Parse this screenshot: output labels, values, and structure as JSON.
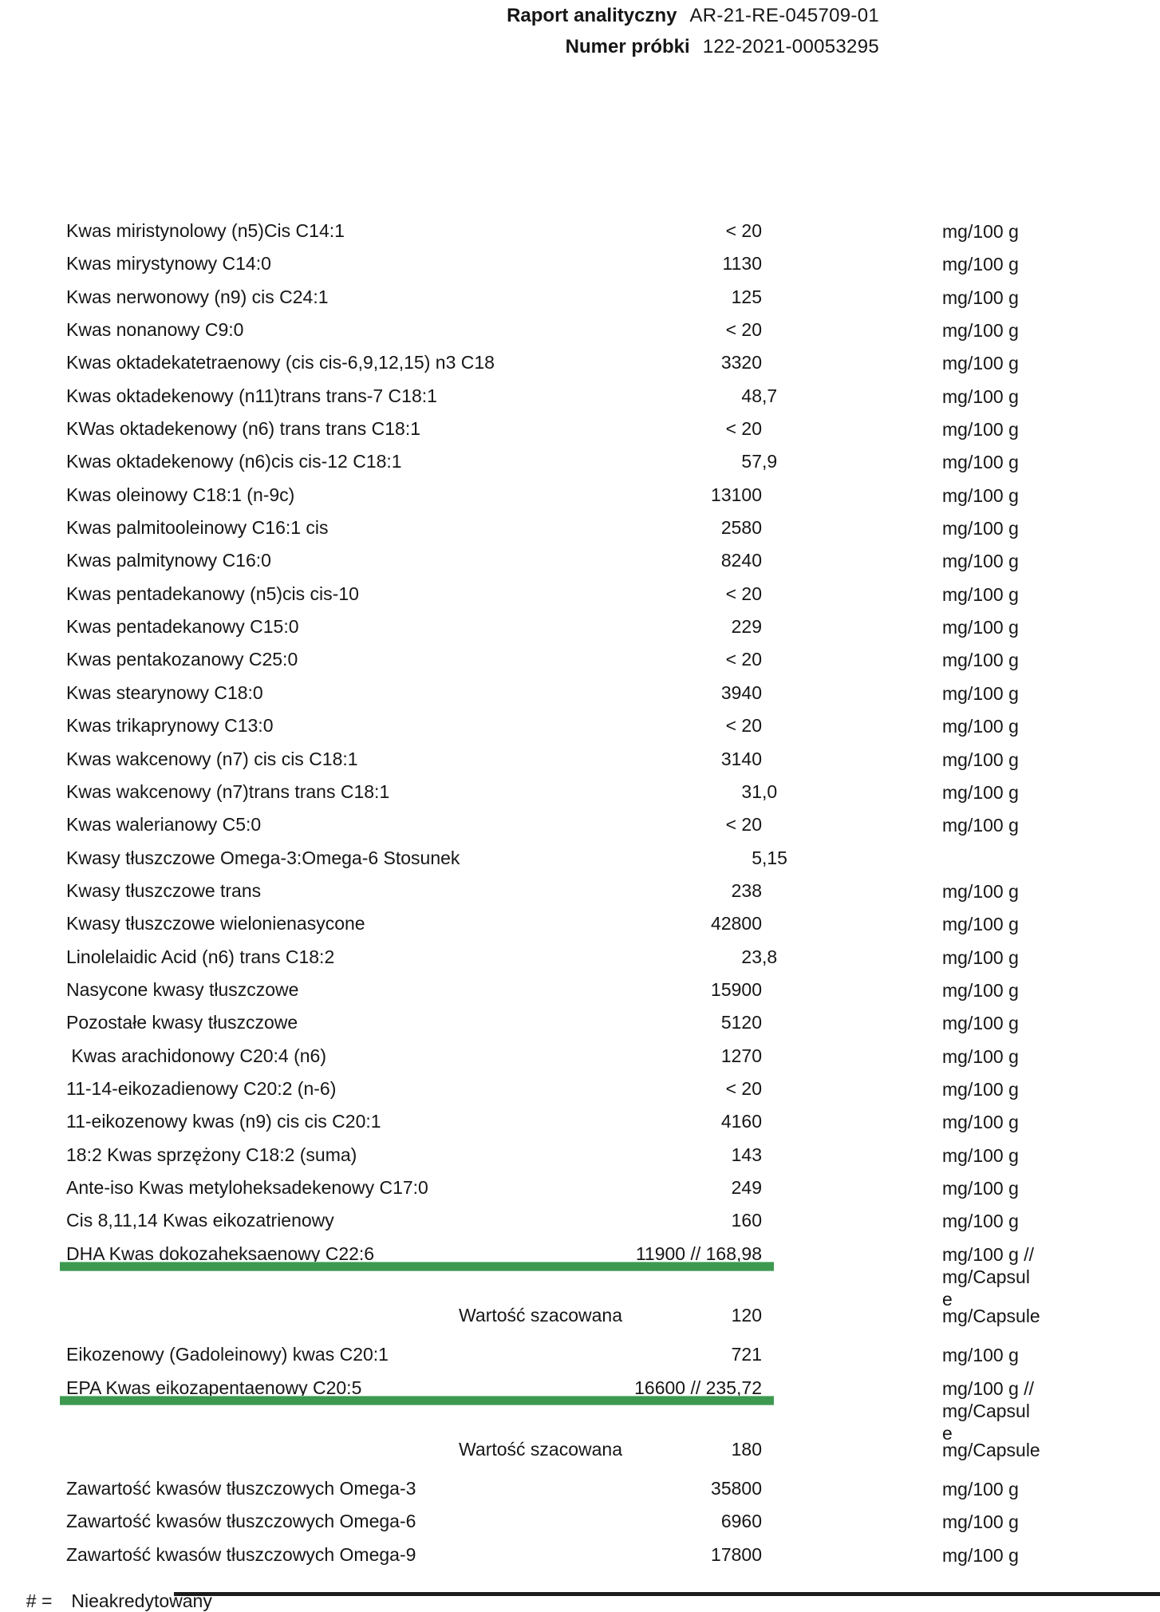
{
  "page": {
    "background": "#ffffff",
    "accent_green": "#3e9950",
    "text_color": "#161616"
  },
  "header": {
    "report_label": "Raport analityczny",
    "report_value": "AR-21-RE-045709-01",
    "sample_label": "Numer próbki",
    "sample_value": "122-2021-00053295"
  },
  "table": {
    "value_unit_default": "mg/100 g",
    "rows": [
      {
        "label": "Kwas miristynolowy (n5)Cis C14:1",
        "value": "< 20",
        "frac": "",
        "unit": [
          "mg/100 g"
        ],
        "type": "normal"
      },
      {
        "label": "Kwas mirystynowy C14:0",
        "value": "1130",
        "frac": "",
        "unit": [
          "mg/100 g"
        ],
        "type": "normal"
      },
      {
        "label": "Kwas nerwonowy (n9) cis C24:1",
        "value": "125",
        "frac": "",
        "unit": [
          "mg/100 g"
        ],
        "type": "normal"
      },
      {
        "label": "Kwas nonanowy C9:0",
        "value": "< 20",
        "frac": "",
        "unit": [
          "mg/100 g"
        ],
        "type": "normal"
      },
      {
        "label": "Kwas oktadekatetraenowy (cis cis-6,9,12,15) n3 C18",
        "value": "3320",
        "frac": "",
        "unit": [
          "mg/100 g"
        ],
        "type": "normal"
      },
      {
        "label": "Kwas oktadekenowy (n11)trans trans-7 C18:1",
        "value": "48",
        "frac": ",7",
        "unit": [
          "mg/100 g"
        ],
        "type": "normal"
      },
      {
        "label": "KWas oktadekenowy (n6) trans trans C18:1",
        "value": "< 20",
        "frac": "",
        "unit": [
          "mg/100 g"
        ],
        "type": "normal"
      },
      {
        "label": "Kwas oktadekenowy (n6)cis cis-12 C18:1",
        "value": "57",
        "frac": ",9",
        "unit": [
          "mg/100 g"
        ],
        "type": "normal"
      },
      {
        "label": "Kwas oleinowy C18:1 (n-9c)",
        "value": "13100",
        "frac": "",
        "unit": [
          "mg/100 g"
        ],
        "type": "normal"
      },
      {
        "label": "Kwas palmitooleinowy C16:1 cis",
        "value": "2580",
        "frac": "",
        "unit": [
          "mg/100 g"
        ],
        "type": "normal"
      },
      {
        "label": "Kwas palmitynowy C16:0",
        "value": "8240",
        "frac": "",
        "unit": [
          "mg/100 g"
        ],
        "type": "normal"
      },
      {
        "label": "Kwas pentadekanowy (n5)cis cis-10",
        "value": "< 20",
        "frac": "",
        "unit": [
          "mg/100 g"
        ],
        "type": "normal"
      },
      {
        "label": "Kwas pentadekanowy C15:0",
        "value": "229",
        "frac": "",
        "unit": [
          "mg/100 g"
        ],
        "type": "normal"
      },
      {
        "label": "Kwas pentakozanowy C25:0",
        "value": "< 20",
        "frac": "",
        "unit": [
          "mg/100 g"
        ],
        "type": "normal"
      },
      {
        "label": "Kwas stearynowy C18:0",
        "value": "3940",
        "frac": "",
        "unit": [
          "mg/100 g"
        ],
        "type": "normal"
      },
      {
        "label": "Kwas trikaprynowy C13:0",
        "value": "< 20",
        "frac": "",
        "unit": [
          "mg/100 g"
        ],
        "type": "normal"
      },
      {
        "label": "Kwas wakcenowy (n7) cis cis C18:1",
        "value": "3140",
        "frac": "",
        "unit": [
          "mg/100 g"
        ],
        "type": "normal"
      },
      {
        "label": "Kwas wakcenowy (n7)trans trans C18:1",
        "value": "31",
        "frac": ",0",
        "unit": [
          "mg/100 g"
        ],
        "type": "normal"
      },
      {
        "label": "Kwas walerianowy C5:0",
        "value": "< 20",
        "frac": "",
        "unit": [
          "mg/100 g"
        ],
        "type": "normal"
      },
      {
        "label": "Kwasy tłuszczowe Omega-3:Omega-6 Stosunek",
        "value": "5",
        "frac": ",15",
        "unit": [],
        "type": "normal"
      },
      {
        "label": "Kwasy tłuszczowe trans",
        "value": "238",
        "frac": "",
        "unit": [
          "mg/100 g"
        ],
        "type": "normal"
      },
      {
        "label": "Kwasy tłuszczowe wielonienasycone",
        "value": "42800",
        "frac": "",
        "unit": [
          "mg/100 g"
        ],
        "type": "normal"
      },
      {
        "label": "Linolelaidic Acid (n6) trans C18:2",
        "value": "23",
        "frac": ",8",
        "unit": [
          "mg/100 g"
        ],
        "type": "normal"
      },
      {
        "label": "Nasycone kwasy tłuszczowe",
        "value": "15900",
        "frac": "",
        "unit": [
          "mg/100 g"
        ],
        "type": "normal"
      },
      {
        "label": "Pozostałe kwasy tłuszczowe",
        "value": "5120",
        "frac": "",
        "unit": [
          "mg/100 g"
        ],
        "type": "normal"
      },
      {
        "label": " Kwas arachidonowy C20:4 (n6)",
        "value": "1270",
        "frac": "",
        "unit": [
          "mg/100 g"
        ],
        "type": "normal"
      },
      {
        "label": "11-14-eikozadienowy C20:2 (n-6)",
        "value": "< 20",
        "frac": "",
        "unit": [
          "mg/100 g"
        ],
        "type": "normal"
      },
      {
        "label": "11-eikozenowy kwas (n9) cis cis C20:1",
        "value": "4160",
        "frac": "",
        "unit": [
          "mg/100 g"
        ],
        "type": "normal"
      },
      {
        "label": "18:2 Kwas sprzężony C18:2 (suma)",
        "value": "143",
        "frac": "",
        "unit": [
          "mg/100 g"
        ],
        "type": "normal"
      },
      {
        "label": "Ante-iso Kwas metyloheksadekenowy C17:0",
        "value": "249",
        "frac": "",
        "unit": [
          "mg/100 g"
        ],
        "type": "normal"
      },
      {
        "label": "Cis 8,11,14 Kwas eikozatrienowy",
        "value": "160",
        "frac": "",
        "unit": [
          "mg/100 g"
        ],
        "type": "normal"
      },
      {
        "label": "DHA Kwas dokozaheksaenowy C22:6",
        "value": "11900 // 168,98",
        "frac": "",
        "unit": [
          "mg/100 g //",
          "mg/Capsul",
          "e"
        ],
        "type": "underlined"
      },
      {
        "label": "Wartość szacowana",
        "value": "120",
        "frac": "",
        "unit": [
          "mg/Capsule"
        ],
        "type": "estimate"
      },
      {
        "label": "Eikozenowy (Gadoleinowy) kwas C20:1",
        "value": "721",
        "frac": "",
        "unit": [
          "mg/100 g"
        ],
        "type": "normal"
      },
      {
        "label": "EPA Kwas eikozapentaenowy C20:5",
        "value": "16600 // 235,72",
        "frac": "",
        "unit": [
          "mg/100 g //",
          "mg/Capsul",
          "e"
        ],
        "type": "underlined"
      },
      {
        "label": "Wartość szacowana",
        "value": "180",
        "frac": "",
        "unit": [
          "mg/Capsule"
        ],
        "type": "estimate"
      },
      {
        "label": "Zawartość kwasów tłuszczowych Omega-3",
        "value": "35800",
        "frac": "",
        "unit": [
          "mg/100 g"
        ],
        "type": "normal"
      },
      {
        "label": "Zawartość kwasów tłuszczowych Omega-6",
        "value": "6960",
        "frac": "",
        "unit": [
          "mg/100 g"
        ],
        "type": "normal"
      },
      {
        "label": "Zawartość kwasów tłuszczowych Omega-9",
        "value": "17800",
        "frac": "",
        "unit": [
          "mg/100 g"
        ],
        "type": "normal"
      }
    ]
  },
  "footer": {
    "hash_symbol": "# =",
    "hash_note": "Nieakredytowany"
  }
}
